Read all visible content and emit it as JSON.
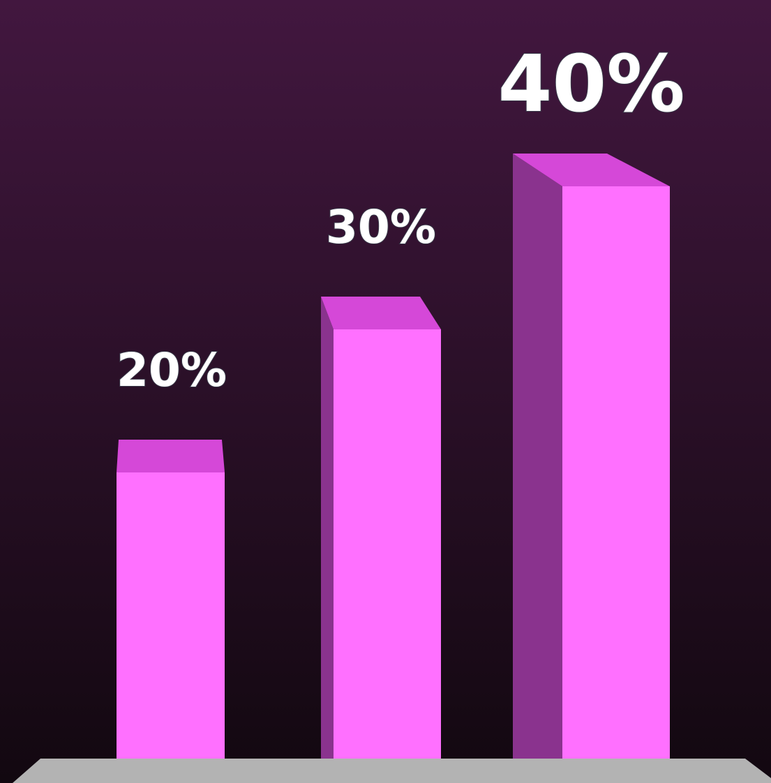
{
  "chart_data": {
    "type": "bar3d",
    "categories": [
      null,
      null,
      null
    ],
    "values": [
      20,
      30,
      40
    ],
    "value_labels": [
      "20%",
      "30%",
      "40%"
    ],
    "color": "#ff70ff"
  }
}
